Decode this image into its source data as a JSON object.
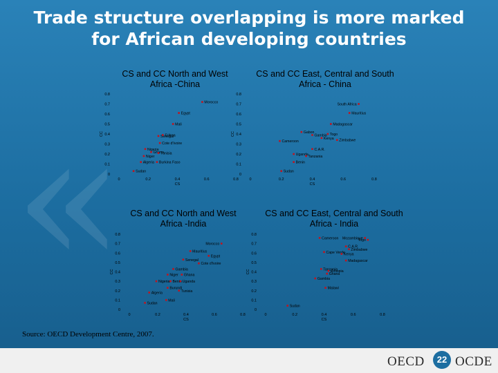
{
  "slide": {
    "title_line1": "Trade structure overlapping is more marked",
    "title_line2": "for African developing countries",
    "source": "Source: OECD Development Centre, 2007.",
    "logo_left": "OECD",
    "logo_right": "OCDE",
    "page_number": "22"
  },
  "colors": {
    "background": "#1d6ea1",
    "marker": "#c0141e",
    "panel_text": "#000000",
    "title_text": "#ffffff"
  },
  "chart_data": [
    {
      "type": "scatter",
      "title_line1": "CS and CC North and West",
      "title_line2": "Africa -China",
      "xlabel": "CS",
      "ylabel": "CC",
      "xlim": [
        0,
        0.8
      ],
      "ylim": [
        0,
        0.8
      ],
      "xticks": [
        "0",
        "0.2",
        "0.4",
        "0.6",
        "0.8"
      ],
      "yticks": [
        "0",
        "0.1",
        "0.2",
        "0.3",
        "0.4",
        "0.5",
        "0.6",
        "0.7",
        "0.8"
      ],
      "points": [
        {
          "label": "Morocco",
          "x": 0.57,
          "y": 0.72
        },
        {
          "label": "Egypt",
          "x": 0.41,
          "y": 0.61
        },
        {
          "label": "Mali",
          "x": 0.37,
          "y": 0.5
        },
        {
          "label": "Senegal",
          "x": 0.27,
          "y": 0.38
        },
        {
          "label": "Eritrea",
          "x": 0.3,
          "y": 0.39
        },
        {
          "label": "Cote d'Ivoire",
          "x": 0.28,
          "y": 0.31
        },
        {
          "label": "Nigeria",
          "x": 0.18,
          "y": 0.25
        },
        {
          "label": "Ghana",
          "x": 0.22,
          "y": 0.22
        },
        {
          "label": "Tunisia",
          "x": 0.27,
          "y": 0.21
        },
        {
          "label": "Niger",
          "x": 0.17,
          "y": 0.18
        },
        {
          "label": "Algeria",
          "x": 0.15,
          "y": 0.12
        },
        {
          "label": "Burkina Faso",
          "x": 0.26,
          "y": 0.12
        },
        {
          "label": "Sudan",
          "x": 0.1,
          "y": 0.03
        }
      ]
    },
    {
      "type": "scatter",
      "title_line1": "CS and CC East, Central and South",
      "title_line2": "Africa - China",
      "xlabel": "CS",
      "ylabel": "CC",
      "xlim": [
        0,
        0.8
      ],
      "ylim": [
        0,
        0.8
      ],
      "xticks": [
        "0",
        "0.2",
        "0.4",
        "0.6",
        "0.8"
      ],
      "yticks": [
        "0",
        "0.1",
        "0.2",
        "0.3",
        "0.4",
        "0.5",
        "0.6",
        "0.7",
        "0.8"
      ],
      "points": [
        {
          "label": "South Africa",
          "x": 0.7,
          "y": 0.7
        },
        {
          "label": "Mauritius",
          "x": 0.64,
          "y": 0.61
        },
        {
          "label": "Madagascar",
          "x": 0.52,
          "y": 0.5
        },
        {
          "label": "Gabon",
          "x": 0.33,
          "y": 0.42
        },
        {
          "label": "Togo",
          "x": 0.5,
          "y": 0.4
        },
        {
          "label": "Gambia",
          "x": 0.4,
          "y": 0.39
        },
        {
          "label": "Kenya",
          "x": 0.46,
          "y": 0.36
        },
        {
          "label": "Zimbabwe",
          "x": 0.56,
          "y": 0.34
        },
        {
          "label": "Cameroon",
          "x": 0.19,
          "y": 0.33
        },
        {
          "label": "C.A.R.",
          "x": 0.4,
          "y": 0.25
        },
        {
          "label": "Uganda",
          "x": 0.28,
          "y": 0.2
        },
        {
          "label": "Tanzania",
          "x": 0.36,
          "y": 0.18
        },
        {
          "label": "Benin",
          "x": 0.28,
          "y": 0.12
        },
        {
          "label": "Sudan",
          "x": 0.2,
          "y": 0.03
        }
      ]
    },
    {
      "type": "scatter",
      "title_line1": "CS and CC North and West",
      "title_line2": "Africa -India",
      "xlabel": "CS",
      "ylabel": "CC",
      "xlim": [
        0,
        0.8
      ],
      "ylim": [
        0,
        0.8
      ],
      "xticks": [
        "0",
        "0.2",
        "0.4",
        "0.6",
        "0.8"
      ],
      "yticks": [
        "0",
        "0.1",
        "0.2",
        "0.3",
        "0.4",
        "0.5",
        "0.6",
        "0.7",
        "0.8"
      ],
      "points": [
        {
          "label": "Morocco",
          "x": 0.65,
          "y": 0.7
        },
        {
          "label": "Mauritius",
          "x": 0.43,
          "y": 0.62
        },
        {
          "label": "Egypt",
          "x": 0.56,
          "y": 0.57
        },
        {
          "label": "Senegal",
          "x": 0.38,
          "y": 0.53
        },
        {
          "label": "Cote d'Ivoire",
          "x": 0.49,
          "y": 0.49
        },
        {
          "label": "Gambia",
          "x": 0.31,
          "y": 0.43
        },
        {
          "label": "Niger",
          "x": 0.27,
          "y": 0.37
        },
        {
          "label": "Ghana",
          "x": 0.37,
          "y": 0.37
        },
        {
          "label": "Nigeria",
          "x": 0.19,
          "y": 0.3
        },
        {
          "label": "Benin",
          "x": 0.29,
          "y": 0.3
        },
        {
          "label": "Uganda",
          "x": 0.36,
          "y": 0.3
        },
        {
          "label": "Burundi",
          "x": 0.27,
          "y": 0.23
        },
        {
          "label": "Tunisia",
          "x": 0.35,
          "y": 0.2
        },
        {
          "label": "Algeria",
          "x": 0.14,
          "y": 0.18
        },
        {
          "label": "Mali",
          "x": 0.26,
          "y": 0.1
        },
        {
          "label": "Sudan",
          "x": 0.11,
          "y": 0.07
        }
      ]
    },
    {
      "type": "scatter",
      "title_line1": "CS and CC East, Central and South",
      "title_line2": "Africa - India",
      "xlabel": "CS",
      "ylabel": "CC",
      "xlim": [
        0,
        0.8
      ],
      "ylim": [
        0,
        0.8
      ],
      "xticks": [
        "0",
        "0.2",
        "0.4",
        "0.6",
        "0.8"
      ],
      "yticks": [
        "0",
        "0.1",
        "0.2",
        "0.3",
        "0.4",
        "0.5",
        "0.6",
        "0.7",
        "0.8"
      ],
      "points": [
        {
          "label": "Cameroon",
          "x": 0.37,
          "y": 0.76
        },
        {
          "label": "Mozambique",
          "x": 0.68,
          "y": 0.76
        },
        {
          "label": "Togo",
          "x": 0.7,
          "y": 0.74
        },
        {
          "label": "C.A.R.",
          "x": 0.55,
          "y": 0.67
        },
        {
          "label": "Zimbabwe",
          "x": 0.57,
          "y": 0.64
        },
        {
          "label": "Cape Verde",
          "x": 0.4,
          "y": 0.61
        },
        {
          "label": "Kenya",
          "x": 0.52,
          "y": 0.59
        },
        {
          "label": "Madagascar",
          "x": 0.55,
          "y": 0.52
        },
        {
          "label": "Tanzania",
          "x": 0.38,
          "y": 0.43
        },
        {
          "label": "Ethiopia",
          "x": 0.43,
          "y": 0.41
        },
        {
          "label": "Ghana",
          "x": 0.42,
          "y": 0.38
        },
        {
          "label": "Gambia",
          "x": 0.34,
          "y": 0.33
        },
        {
          "label": "Malawi",
          "x": 0.41,
          "y": 0.23
        },
        {
          "label": "Sudan",
          "x": 0.15,
          "y": 0.04
        }
      ]
    }
  ]
}
